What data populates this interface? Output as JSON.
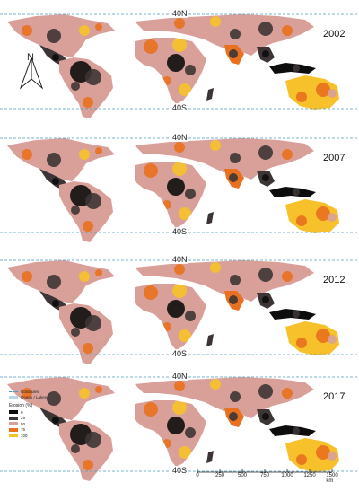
{
  "panels": [
    {
      "year": "2002",
      "lat_north": "40N",
      "lat_south": "40S"
    },
    {
      "year": "2007",
      "lat_north": "40N",
      "lat_south": "40S"
    },
    {
      "year": "2012",
      "lat_north": "40N",
      "lat_south": "40S"
    },
    {
      "year": "2017",
      "lat_north": "40N",
      "lat_south": "40S"
    }
  ],
  "north_arrow": {
    "label": "N"
  },
  "legend": {
    "graticule_label": "Graticules",
    "ocean_label": "Ocean / Lakes",
    "title": "Erosion (%)",
    "classes": [
      {
        "label": "0",
        "color": "#0d0d0d"
      },
      {
        "label": "25",
        "color": "#3d3535"
      },
      {
        "label": "50",
        "color": "#d9a09a"
      },
      {
        "label": "75",
        "color": "#e8701e"
      },
      {
        "label": "100",
        "color": "#f6c12a"
      }
    ]
  },
  "scalebar": {
    "ticks": [
      "0",
      "250",
      "500",
      "750",
      "1000",
      "1250",
      "1500 km"
    ]
  },
  "colors": {
    "graticule": "#4b9bbd",
    "high_erosion": "#0d0d0d",
    "dark": "#3d3535",
    "medium": "#d9a09a",
    "orange": "#e8701e",
    "yellow": "#f6c12a"
  }
}
